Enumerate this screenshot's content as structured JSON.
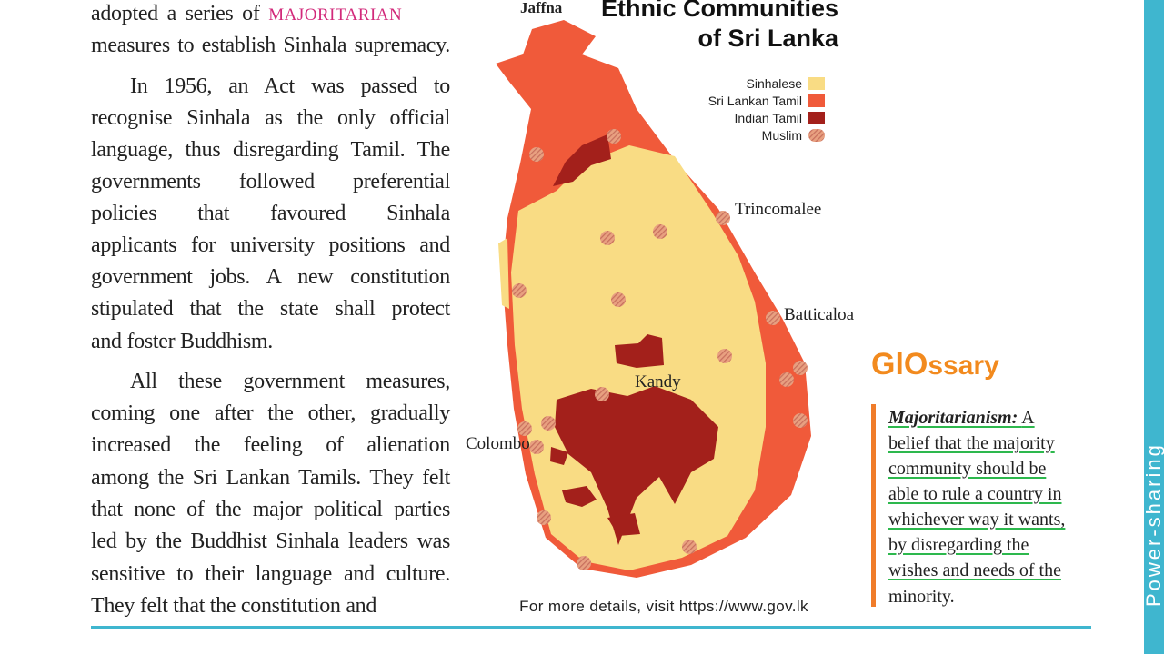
{
  "text": {
    "paragraphs": [
      {
        "lines": [
          "adopted a series of",
          "measures to establish Sinhala supremacy."
        ],
        "keyword": "MAJORITARIAN"
      },
      {
        "lines": [
          "In 1956, an Act was passed to",
          "recognise Sinhala as the only official",
          "language, thus disregarding Tamil. The",
          "governments followed preferential",
          "policies that favoured Sinhala",
          "applicants for university positions and",
          "government jobs. A new constitution",
          "stipulated that the state shall protect",
          "and foster Buddhism."
        ]
      },
      {
        "lines": [
          "All these government measures,",
          "coming one after the other, gradually",
          "increased the feeling of alienation",
          "among the Sri Lankan Tamils. They felt",
          "that none of the major political parties",
          "led by the Buddhist Sinhala leaders was",
          "sensitive to their language and culture.",
          "They felt that the constitution and"
        ]
      }
    ]
  },
  "map": {
    "title_lines": [
      "Ethnic Communities",
      "of Sri Lanka"
    ],
    "legend": [
      {
        "name": "Sinhalese",
        "color": "#f9dc84"
      },
      {
        "name": "Sri Lankan Tamil",
        "color": "#f05a3a"
      },
      {
        "name": "Indian Tamil",
        "color": "#a3201b"
      },
      {
        "name": "Muslim",
        "color": "#c8705e"
      }
    ],
    "places": [
      "Jaffna",
      "Trincomalee",
      "Batticaloa",
      "Kandy",
      "Colombo"
    ],
    "caption": "For more details, visit https://www.gov.lk"
  },
  "glossary": {
    "logo": [
      "GlO",
      "ssary"
    ],
    "term": "Majoritarianism:",
    "definition_lines": [
      "A",
      "belief that the majority",
      "community should be",
      "able to rule a country in",
      "whichever way it wants,",
      "by disregarding the",
      "wishes and needs of the",
      "minority."
    ]
  },
  "sidebar": {
    "chapter": "Power-sharing"
  }
}
